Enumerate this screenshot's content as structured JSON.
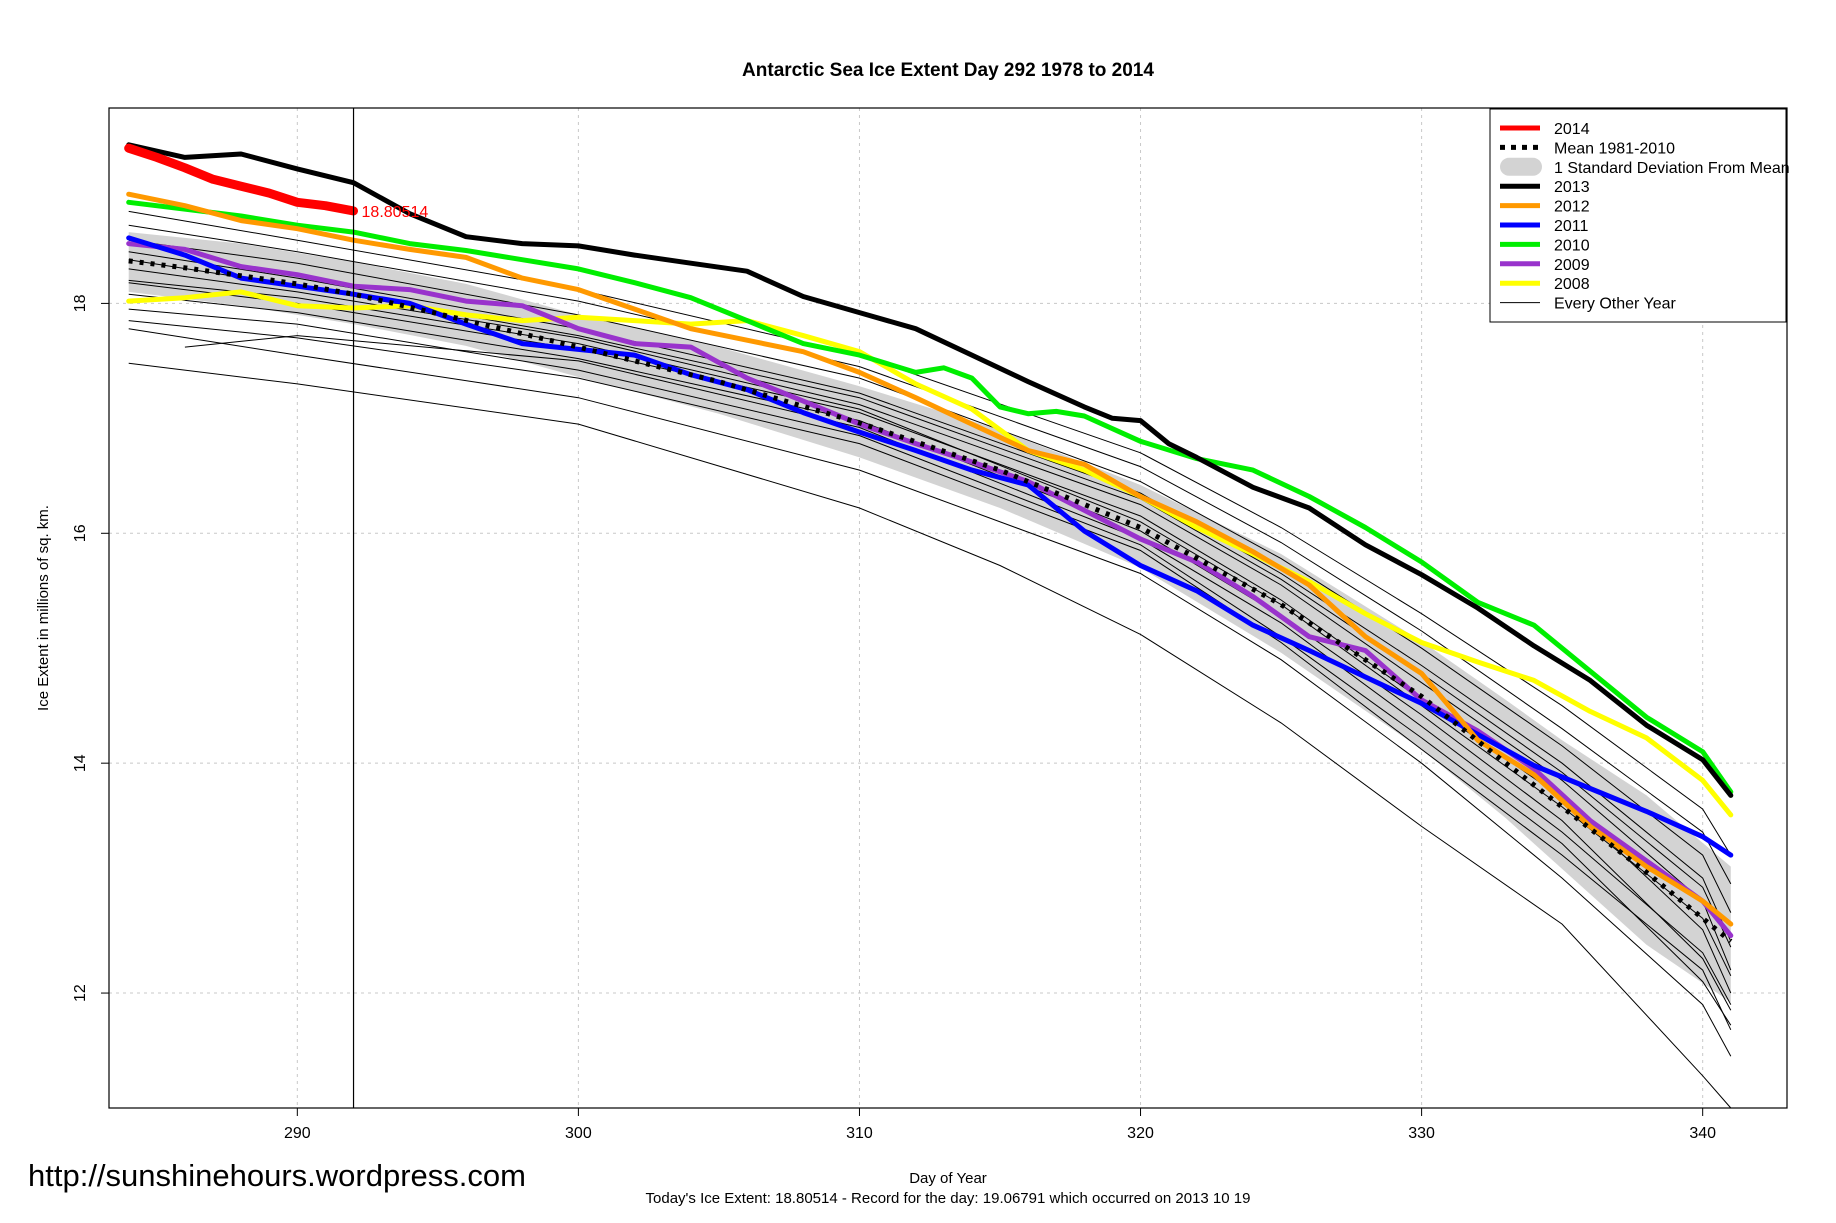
{
  "chart_data": {
    "type": "line",
    "title": "Antarctic Sea Ice Extent Day 292 1978 to 2014",
    "xlabel": "Day of Year",
    "ylabel": "Ice Extent in millions of sq. km.",
    "xlim": [
      283.3,
      343.0
    ],
    "ylim": [
      11.0,
      19.7
    ],
    "x_ticks": [
      290,
      300,
      310,
      320,
      330,
      340
    ],
    "y_ticks": [
      12,
      14,
      16,
      18
    ],
    "grid": true,
    "legend_position": "top-right",
    "current_day": 292,
    "current_value_label": "18.80514",
    "series": [
      {
        "name": "2014",
        "color": "#ff0000",
        "width": 9,
        "style": "solid",
        "x": [
          284,
          285,
          286,
          287,
          288,
          289,
          290,
          291,
          292
        ],
        "y": [
          19.35,
          19.27,
          19.18,
          19.08,
          19.02,
          18.96,
          18.88,
          18.85,
          18.80514
        ]
      },
      {
        "name": "Mean 1981-2010",
        "color": "#000000",
        "width": 5,
        "style": "dotted",
        "x": [
          284,
          286,
          288,
          290,
          292,
          295,
          300,
          305,
          310,
          315,
          320,
          325,
          330,
          333,
          335,
          338,
          341
        ],
        "y": [
          18.37,
          18.31,
          18.24,
          18.17,
          18.08,
          17.91,
          17.62,
          17.32,
          16.96,
          16.55,
          16.05,
          15.38,
          14.58,
          14.0,
          13.62,
          13.05,
          12.45
        ]
      },
      {
        "name": "1 Standard Deviation From Mean",
        "color": "#d3d3d3",
        "style": "band",
        "x": [
          284,
          288,
          292,
          296,
          300,
          305,
          310,
          315,
          320,
          325,
          330,
          333,
          335,
          338,
          341
        ],
        "upper": [
          18.62,
          18.52,
          18.36,
          18.17,
          17.9,
          17.62,
          17.28,
          16.9,
          16.42,
          15.82,
          15.06,
          14.55,
          14.2,
          13.72,
          13.1
        ],
        "lower": [
          18.1,
          17.98,
          17.82,
          17.63,
          17.36,
          17.04,
          16.66,
          16.22,
          15.7,
          14.96,
          14.12,
          13.52,
          13.08,
          12.42,
          11.92
        ]
      },
      {
        "name": "2013",
        "color": "#000000",
        "width": 5,
        "style": "solid",
        "x": [
          284,
          286,
          288,
          290,
          292,
          294,
          296,
          298,
          300,
          302,
          304,
          306,
          308,
          310,
          312,
          314,
          316,
          318,
          319,
          320,
          321,
          322,
          324,
          326,
          328,
          330,
          332,
          334,
          336,
          338,
          340,
          341
        ],
        "y": [
          19.38,
          19.27,
          19.3,
          19.17,
          19.05,
          18.78,
          18.58,
          18.52,
          18.5,
          18.42,
          18.35,
          18.28,
          18.06,
          17.92,
          17.78,
          17.55,
          17.32,
          17.1,
          17.0,
          16.98,
          16.78,
          16.66,
          16.4,
          16.22,
          15.9,
          15.64,
          15.35,
          15.02,
          14.72,
          14.33,
          14.03,
          13.72
        ]
      },
      {
        "name": "2012",
        "color": "#ff9900",
        "width": 5,
        "style": "solid",
        "x": [
          284,
          286,
          288,
          290,
          292,
          294,
          296,
          298,
          300,
          302,
          304,
          306,
          308,
          310,
          312,
          314,
          316,
          318,
          320,
          322,
          324,
          326,
          328,
          330,
          332,
          334,
          336,
          338,
          340,
          341
        ],
        "y": [
          18.95,
          18.85,
          18.72,
          18.65,
          18.55,
          18.47,
          18.4,
          18.22,
          18.12,
          17.95,
          17.78,
          17.68,
          17.58,
          17.4,
          17.18,
          16.95,
          16.72,
          16.6,
          16.32,
          16.1,
          15.84,
          15.55,
          15.1,
          14.78,
          14.2,
          13.9,
          13.45,
          13.1,
          12.8,
          12.6
        ]
      },
      {
        "name": "2011",
        "color": "#0000ff",
        "width": 5,
        "style": "solid",
        "x": [
          284,
          286,
          288,
          290,
          292,
          294,
          296,
          298,
          300,
          302,
          304,
          306,
          308,
          310,
          312,
          314,
          316,
          318,
          320,
          322,
          324,
          326,
          328,
          330,
          332,
          334,
          336,
          338,
          340,
          341
        ],
        "y": [
          18.57,
          18.42,
          18.22,
          18.15,
          18.08,
          18.0,
          17.82,
          17.65,
          17.6,
          17.55,
          17.38,
          17.25,
          17.05,
          16.88,
          16.72,
          16.55,
          16.42,
          16.02,
          15.72,
          15.5,
          15.2,
          14.98,
          14.75,
          14.52,
          14.25,
          13.98,
          13.78,
          13.58,
          13.36,
          13.2
        ]
      },
      {
        "name": "2010",
        "color": "#00ee00",
        "width": 5,
        "style": "solid",
        "x": [
          284,
          286,
          288,
          290,
          292,
          294,
          296,
          298,
          300,
          302,
          304,
          306,
          308,
          310,
          312,
          313,
          314,
          315,
          316,
          317,
          318,
          320,
          322,
          324,
          326,
          328,
          330,
          332,
          334,
          336,
          338,
          340,
          341
        ],
        "y": [
          18.88,
          18.82,
          18.76,
          18.68,
          18.62,
          18.52,
          18.46,
          18.38,
          18.3,
          18.18,
          18.05,
          17.85,
          17.65,
          17.55,
          17.4,
          17.44,
          17.35,
          17.1,
          17.04,
          17.06,
          17.02,
          16.8,
          16.65,
          16.55,
          16.32,
          16.05,
          15.75,
          15.4,
          15.2,
          14.8,
          14.4,
          14.1,
          13.75
        ]
      },
      {
        "name": "2009",
        "color": "#9933cc",
        "width": 5,
        "style": "solid",
        "x": [
          284,
          286,
          288,
          290,
          292,
          294,
          296,
          298,
          300,
          302,
          304,
          306,
          308,
          310,
          312,
          314,
          316,
          318,
          320,
          322,
          324,
          326,
          328,
          330,
          332,
          334,
          336,
          338,
          340,
          341
        ],
        "y": [
          18.52,
          18.47,
          18.32,
          18.25,
          18.15,
          18.12,
          18.02,
          17.98,
          17.78,
          17.65,
          17.62,
          17.35,
          17.15,
          16.95,
          16.78,
          16.62,
          16.45,
          16.2,
          15.95,
          15.75,
          15.45,
          15.1,
          14.98,
          14.55,
          14.28,
          13.95,
          13.5,
          13.15,
          12.8,
          12.5
        ]
      },
      {
        "name": "2008",
        "color": "#ffff00",
        "width": 5,
        "style": "solid",
        "x": [
          284,
          286,
          288,
          290,
          292,
          294,
          296,
          298,
          300,
          302,
          304,
          306,
          308,
          310,
          312,
          314,
          316,
          318,
          320,
          322,
          324,
          326,
          328,
          330,
          332,
          334,
          336,
          338,
          340,
          341
        ],
        "y": [
          18.02,
          18.05,
          18.1,
          17.98,
          17.96,
          17.98,
          17.9,
          17.85,
          17.88,
          17.85,
          17.82,
          17.85,
          17.72,
          17.58,
          17.3,
          17.08,
          16.72,
          16.55,
          16.32,
          16.05,
          15.82,
          15.58,
          15.3,
          15.05,
          14.88,
          14.72,
          14.45,
          14.22,
          13.85,
          13.55
        ]
      }
    ],
    "other_years": [
      {
        "x": [
          284,
          290,
          300,
          310,
          315,
          320,
          325,
          330,
          335,
          340,
          341
        ],
        "y": [
          17.48,
          17.3,
          16.95,
          16.22,
          15.72,
          15.12,
          14.35,
          13.45,
          12.6,
          11.28,
          11.0
        ]
      },
      {
        "x": [
          284,
          290,
          300,
          310,
          320,
          325,
          330,
          335,
          340,
          341
        ],
        "y": [
          17.78,
          17.55,
          17.18,
          16.55,
          15.65,
          14.9,
          14.0,
          13.0,
          11.9,
          11.45
        ]
      },
      {
        "x": [
          284,
          290,
          300,
          310,
          320,
          325,
          330,
          335,
          340,
          341
        ],
        "y": [
          17.95,
          17.82,
          17.42,
          16.85,
          15.9,
          15.1,
          14.22,
          13.3,
          12.1,
          11.72
        ]
      },
      {
        "x": [
          284,
          290,
          300,
          310,
          320,
          325,
          330,
          335,
          340,
          341
        ],
        "y": [
          18.08,
          17.92,
          17.52,
          16.98,
          16.02,
          15.28,
          14.42,
          13.5,
          12.3,
          11.85
        ]
      },
      {
        "x": [
          284,
          290,
          300,
          310,
          320,
          325,
          330,
          335,
          340,
          341
        ],
        "y": [
          18.18,
          18.0,
          17.6,
          17.05,
          16.15,
          15.42,
          14.55,
          13.7,
          12.55,
          12.0
        ]
      },
      {
        "x": [
          284,
          290,
          300,
          310,
          320,
          325,
          330,
          335,
          340,
          341
        ],
        "y": [
          18.3,
          18.1,
          17.7,
          17.12,
          16.25,
          15.55,
          14.7,
          13.85,
          12.8,
          12.2
        ]
      },
      {
        "x": [
          284,
          290,
          300,
          310,
          320,
          325,
          330,
          335,
          340,
          341
        ],
        "y": [
          18.45,
          18.22,
          17.78,
          17.22,
          16.35,
          15.65,
          14.85,
          14.0,
          13.0,
          12.45
        ]
      },
      {
        "x": [
          284,
          290,
          300,
          310,
          320,
          325,
          330,
          335,
          340,
          341
        ],
        "y": [
          18.55,
          18.35,
          17.9,
          17.35,
          16.45,
          15.78,
          15.0,
          14.15,
          13.2,
          12.7
        ]
      },
      {
        "x": [
          284,
          290,
          300,
          310,
          320,
          325,
          330,
          335,
          340,
          341
        ],
        "y": [
          18.68,
          18.45,
          18.02,
          17.45,
          16.58,
          15.92,
          15.15,
          14.3,
          13.4,
          12.95
        ]
      },
      {
        "x": [
          284,
          290,
          300,
          310,
          320,
          325,
          330,
          335,
          340,
          341
        ],
        "y": [
          18.8,
          18.55,
          18.12,
          17.55,
          16.7,
          16.05,
          15.3,
          14.5,
          13.6,
          13.2
        ]
      },
      {
        "x": [
          286,
          290,
          300,
          310,
          320,
          325,
          330,
          335,
          340,
          341
        ],
        "y": [
          17.62,
          17.72,
          17.5,
          16.92,
          15.95,
          15.22,
          14.32,
          13.4,
          12.35,
          11.9
        ]
      },
      {
        "x": [
          284,
          290,
          300,
          310,
          320,
          325,
          330,
          335,
          340,
          341
        ],
        "y": [
          18.2,
          18.05,
          17.65,
          17.08,
          16.1,
          15.38,
          14.5,
          13.62,
          12.65,
          12.15
        ]
      },
      {
        "x": [
          284,
          290,
          300,
          310,
          320,
          325,
          330,
          335,
          340,
          341
        ],
        "y": [
          18.38,
          18.15,
          17.72,
          17.18,
          16.3,
          15.6,
          14.78,
          13.92,
          12.92,
          12.4
        ]
      },
      {
        "x": [
          284,
          290,
          300,
          310,
          320,
          325,
          330,
          335,
          340,
          341
        ],
        "y": [
          17.85,
          17.7,
          17.35,
          16.78,
          15.85,
          15.05,
          14.12,
          13.2,
          12.2,
          11.68
        ]
      }
    ]
  },
  "footer": {
    "url": "http://sunshinehours.wordpress.com",
    "summary": "Today's Ice Extent: 18.80514  - Record for the day: 19.06791 which occurred on 2013 10 19"
  }
}
